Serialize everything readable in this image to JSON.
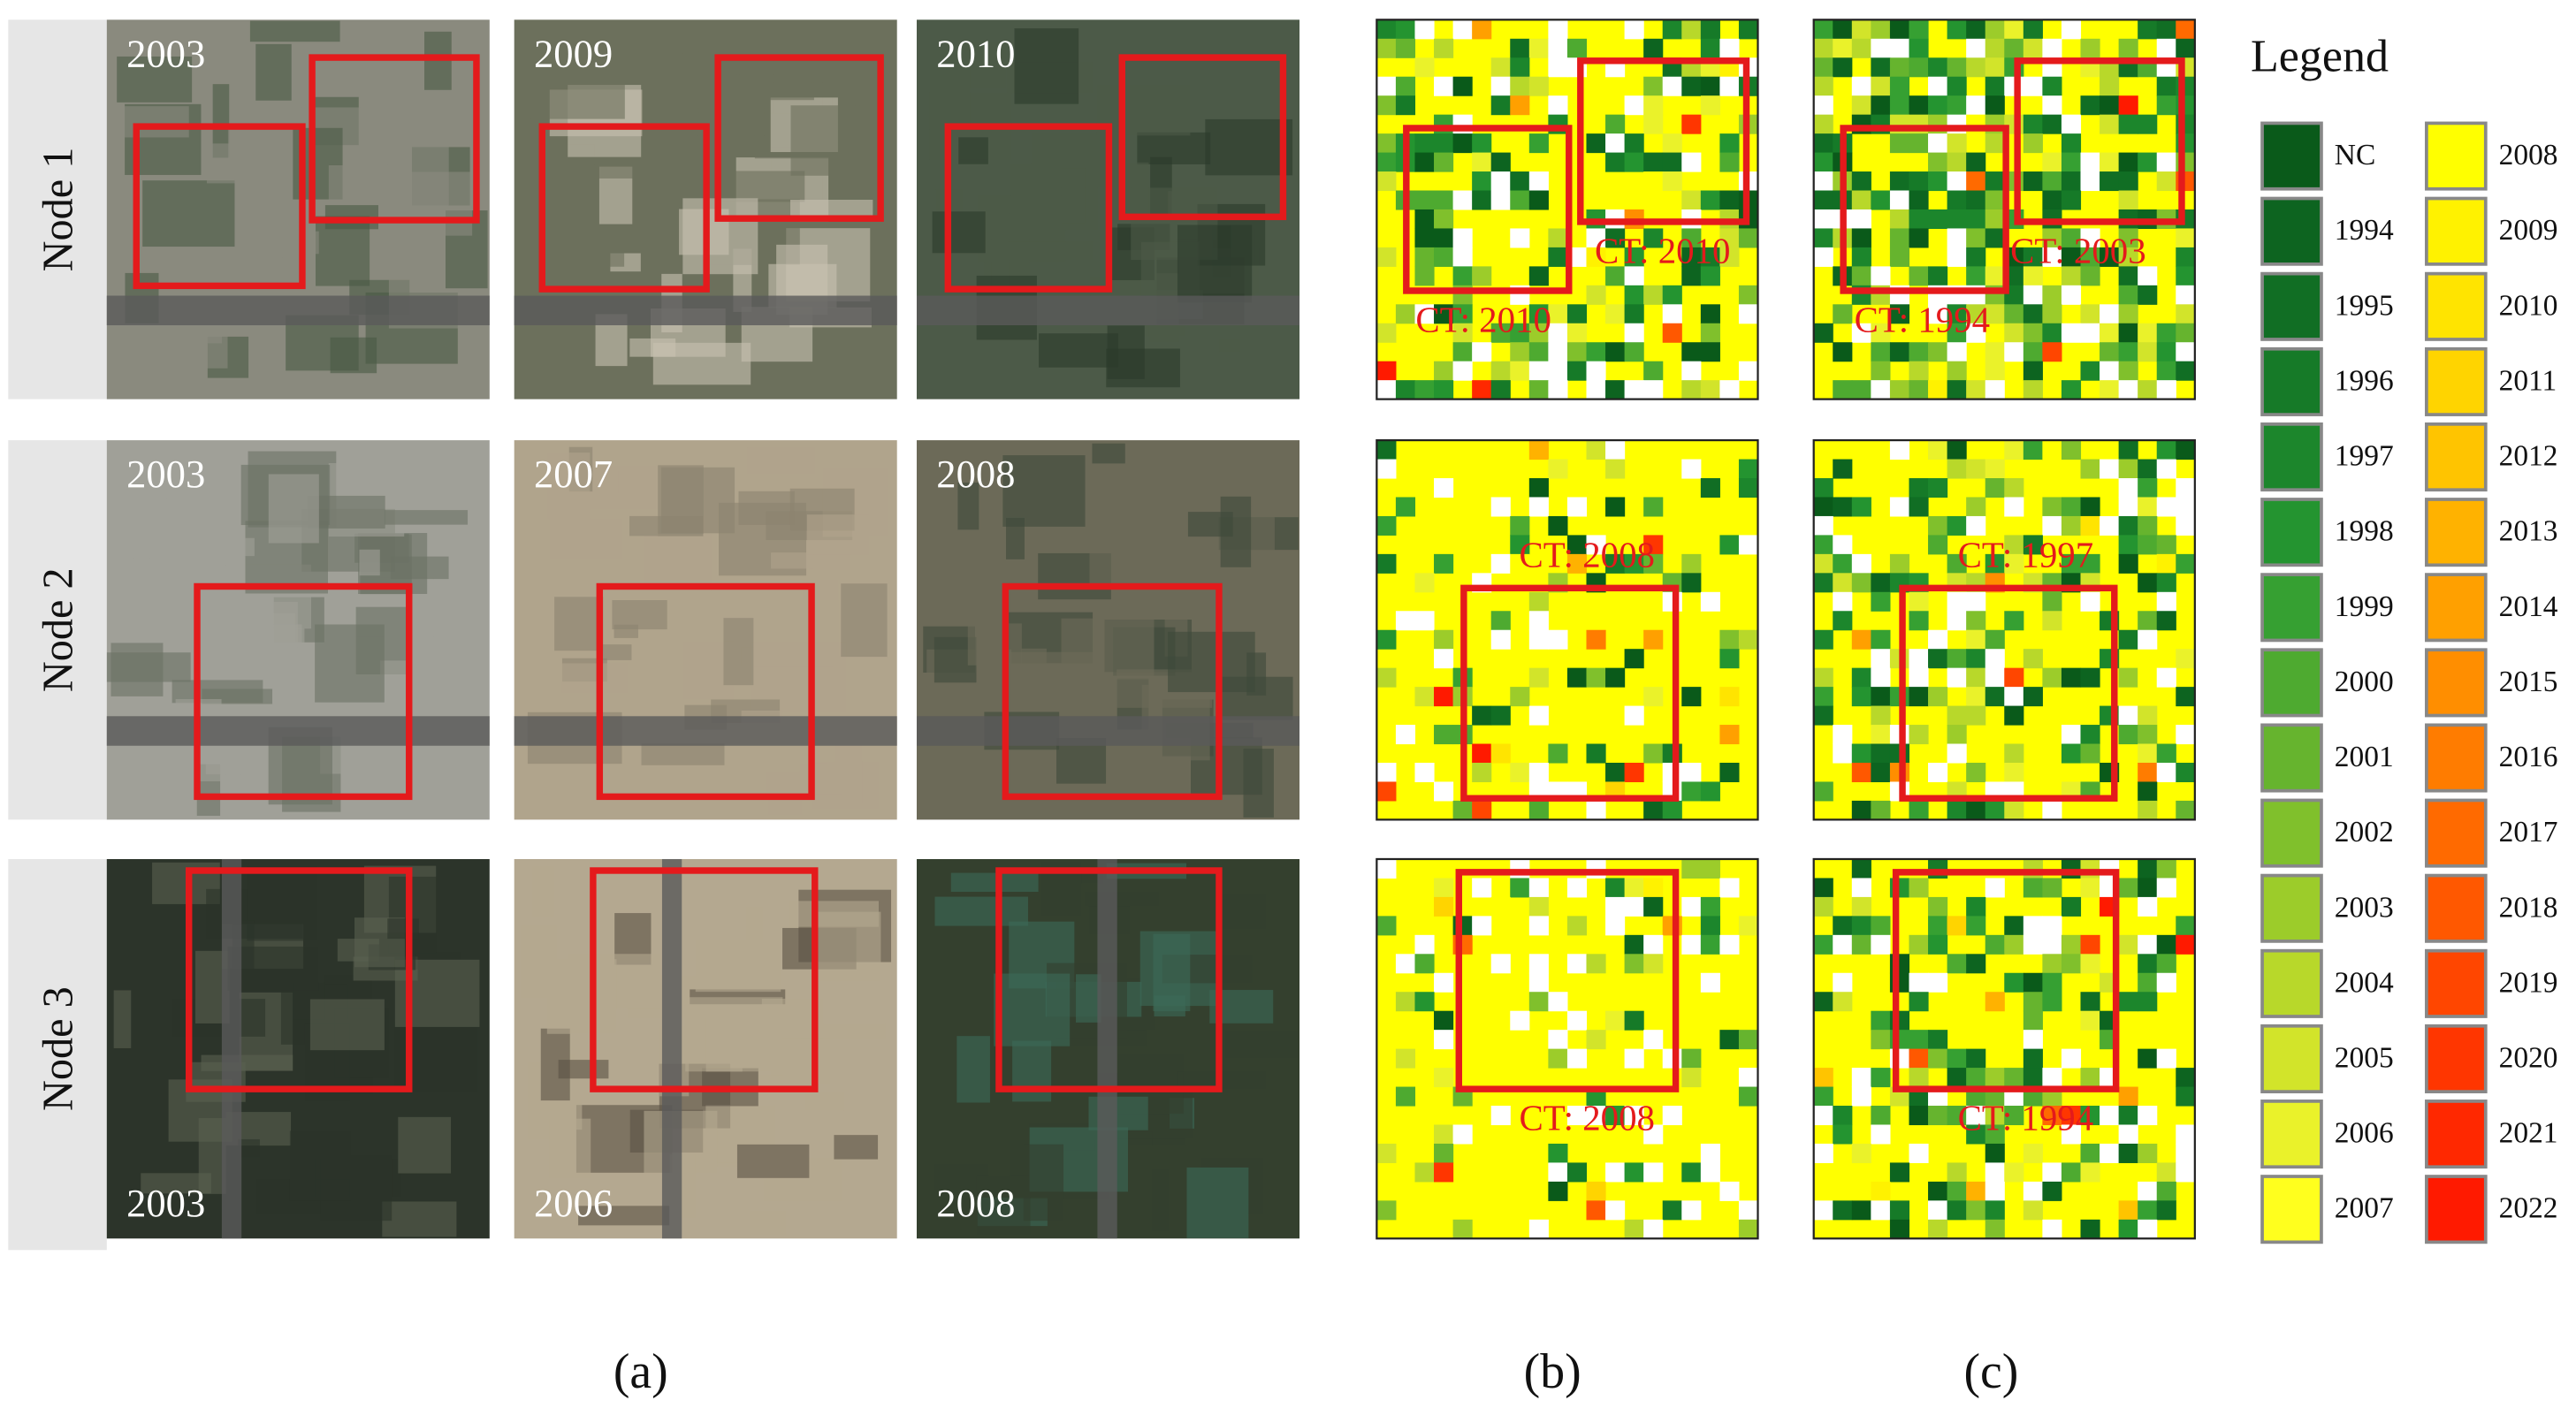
{
  "rows": [
    {
      "label": "Node 1",
      "images": [
        "2003",
        "2009",
        "2010"
      ],
      "maps": [
        [
          "CT: 2010",
          "CT: 2010"
        ],
        [
          "CT: 2003",
          "CT: 1994"
        ]
      ]
    },
    {
      "label": "Node 2",
      "images": [
        "2003",
        "2007",
        "2008"
      ],
      "maps": [
        [
          "CT: 2008"
        ],
        [
          "CT: 1997"
        ]
      ]
    },
    {
      "label": "Node 3",
      "images": [
        "2003",
        "2006",
        "2008"
      ],
      "maps": [
        [
          "CT: 2008"
        ],
        [
          "CT: 1994"
        ]
      ]
    }
  ],
  "legend": {
    "title": "Legend",
    "items": [
      {
        "label": "NC",
        "color": "#0a5a1a"
      },
      {
        "label": "1994",
        "color": "#0d6420"
      },
      {
        "label": "1995",
        "color": "#116e24"
      },
      {
        "label": "1996",
        "color": "#167a28"
      },
      {
        "label": "1997",
        "color": "#1c862c"
      },
      {
        "label": "1998",
        "color": "#249430"
      },
      {
        "label": "1999",
        "color": "#36a032"
      },
      {
        "label": "2000",
        "color": "#4eaa30"
      },
      {
        "label": "2001",
        "color": "#66b42e"
      },
      {
        "label": "2002",
        "color": "#80c02c"
      },
      {
        "label": "2003",
        "color": "#9ccc2a"
      },
      {
        "label": "2004",
        "color": "#b8d82a"
      },
      {
        "label": "2005",
        "color": "#d2e42a"
      },
      {
        "label": "2006",
        "color": "#eaf22a"
      },
      {
        "label": "2007",
        "color": "#ffff1e"
      },
      {
        "label": "2008",
        "color": "#ffff00"
      },
      {
        "label": "2009",
        "color": "#fff200"
      },
      {
        "label": "2010",
        "color": "#ffe400"
      },
      {
        "label": "2011",
        "color": "#ffd400"
      },
      {
        "label": "2012",
        "color": "#ffc400"
      },
      {
        "label": "2013",
        "color": "#ffb200"
      },
      {
        "label": "2014",
        "color": "#ffa000"
      },
      {
        "label": "2015",
        "color": "#ff8e00"
      },
      {
        "label": "2016",
        "color": "#ff7c00"
      },
      {
        "label": "2017",
        "color": "#ff6a00"
      },
      {
        "label": "2018",
        "color": "#ff5800"
      },
      {
        "label": "2019",
        "color": "#ff4600"
      },
      {
        "label": "2020",
        "color": "#ff3600"
      },
      {
        "label": "2021",
        "color": "#ff2800"
      },
      {
        "label": "2022",
        "color": "#ff1a00"
      }
    ]
  },
  "panel_labels": [
    "(a)",
    "(b)",
    "(c)"
  ]
}
